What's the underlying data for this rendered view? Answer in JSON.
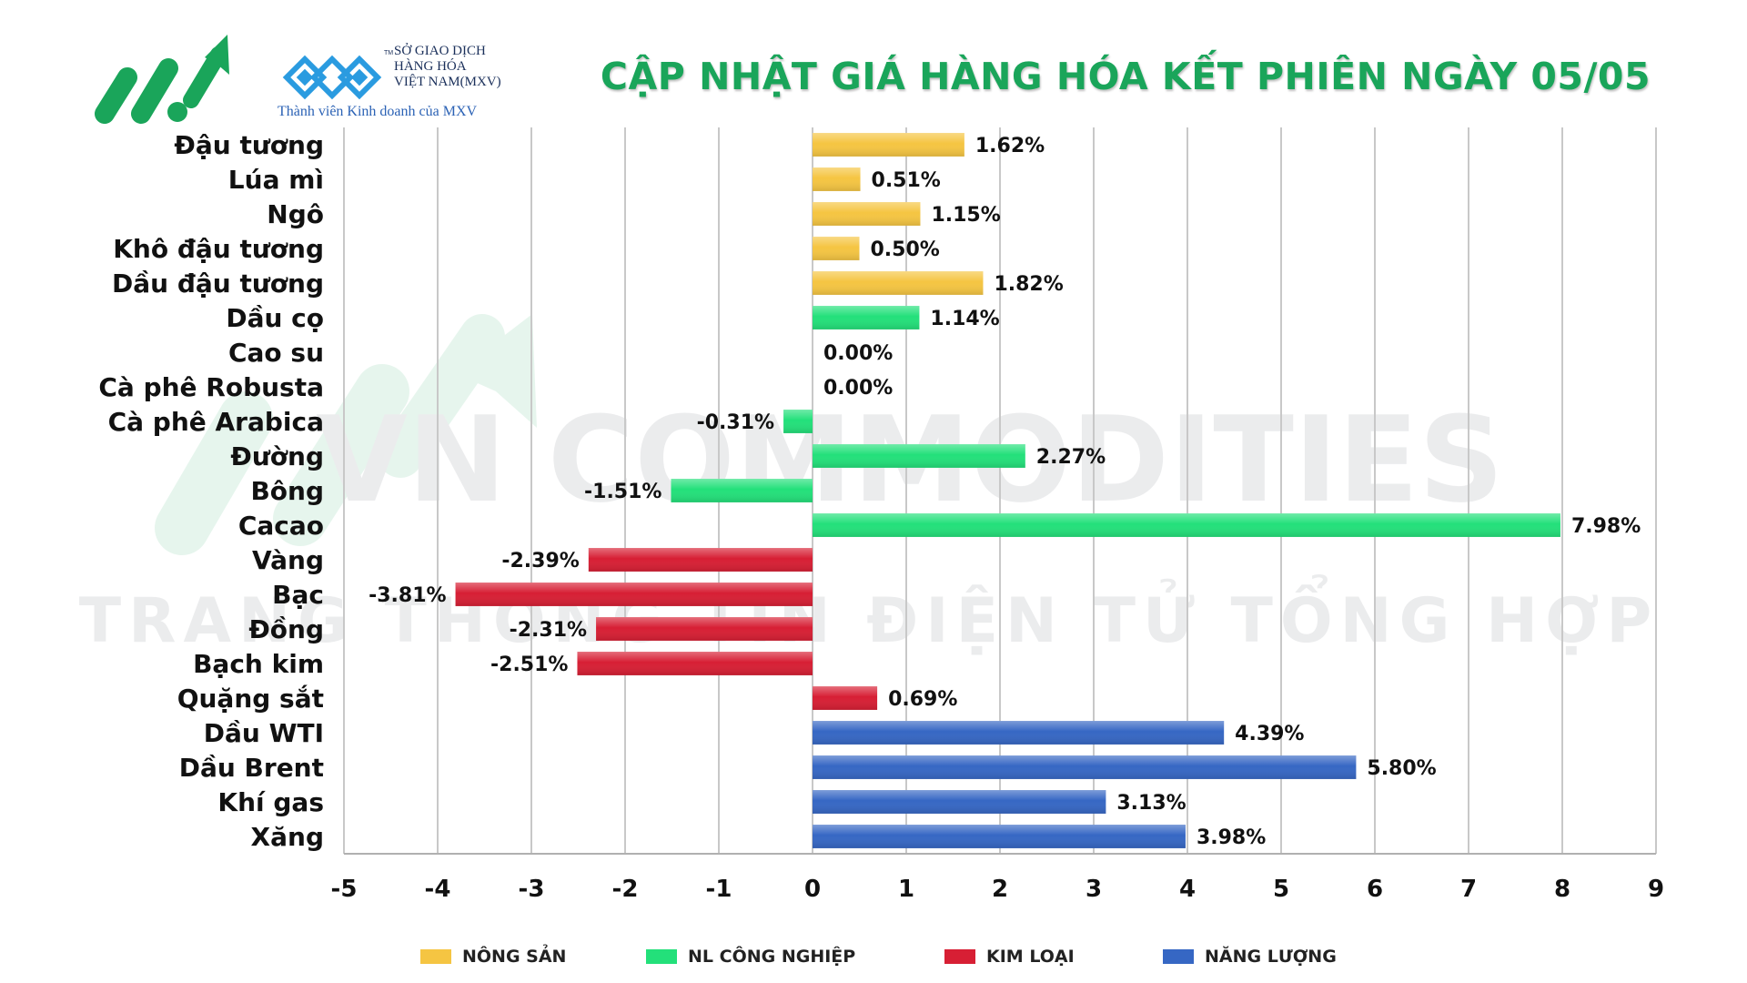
{
  "header": {
    "title": "CẬP NHẬT GIÁ HÀNG HÓA KẾT PHIÊN NGÀY 05/05",
    "exchange_lines": [
      "SỞ GIAO DỊCH",
      "HÀNG HÓA",
      "VIỆT NAM(MXV)"
    ],
    "member_text": "Thành viên Kinh doanh của MXV",
    "trademark": "TM"
  },
  "watermark": {
    "line1": "VN COMMODITIES",
    "line2": "TRANG THÔNG TIN ĐIỆN TỬ TỔNG HỢP"
  },
  "colors": {
    "nong_san": "#f5c542",
    "nl_cong_nghiep": "#23e07a",
    "kim_loai": "#d71f34",
    "nang_luong": "#3667c4",
    "title": "#1aa55a",
    "logo_green": "#1aa55a",
    "logo_blue": "#2a9be0"
  },
  "chart_data": {
    "type": "bar",
    "orientation": "horizontal",
    "xlim": [
      -5,
      9
    ],
    "xticks": [
      "-5",
      "-4",
      "-3",
      "-2",
      "-1",
      "0",
      "1",
      "2",
      "3",
      "4",
      "5",
      "6",
      "7",
      "8",
      "9"
    ],
    "grid": "vertical",
    "legend_position": "bottom",
    "categories": [
      "Đậu tương",
      "Lúa mì",
      "Ngô",
      "Khô đậu tương",
      "Dầu đậu tương",
      "Dầu cọ",
      "Cao su",
      "Cà phê Robusta",
      "Cà phê Arabica",
      "Đường",
      "Bông",
      "Cacao",
      "Vàng",
      "Bạc",
      "Đồng",
      "Bạch kim",
      "Quặng sắt",
      "Dầu WTI",
      "Dầu Brent",
      "Khí gas",
      "Xăng"
    ],
    "values": [
      1.62,
      0.51,
      1.15,
      0.5,
      1.82,
      1.14,
      0.0,
      0.0,
      -0.31,
      2.27,
      -1.51,
      7.98,
      -2.39,
      -3.81,
      -2.31,
      -2.51,
      0.69,
      4.39,
      5.8,
      3.13,
      3.98
    ],
    "labels": [
      "1.62%",
      "0.51%",
      "1.15%",
      "0.50%",
      "1.82%",
      "1.14%",
      "0.00%",
      "0.00%",
      "-0.31%",
      "2.27%",
      "-1.51%",
      "7.98%",
      "-2.39%",
      "-3.81%",
      "-2.31%",
      "-2.51%",
      "0.69%",
      "4.39%",
      "5.80%",
      "3.13%",
      "3.98%"
    ],
    "groups": [
      "nong_san",
      "nong_san",
      "nong_san",
      "nong_san",
      "nong_san",
      "nl_cong_nghiep",
      "nl_cong_nghiep",
      "nl_cong_nghiep",
      "nl_cong_nghiep",
      "nl_cong_nghiep",
      "nl_cong_nghiep",
      "nl_cong_nghiep",
      "kim_loai",
      "kim_loai",
      "kim_loai",
      "kim_loai",
      "kim_loai",
      "nang_luong",
      "nang_luong",
      "nang_luong",
      "nang_luong"
    ],
    "legend": [
      {
        "key": "nong_san",
        "label": "NÔNG SẢN"
      },
      {
        "key": "nl_cong_nghiep",
        "label": "NL CÔNG NGHIỆP"
      },
      {
        "key": "kim_loai",
        "label": "KIM LOẠI"
      },
      {
        "key": "nang_luong",
        "label": "NĂNG LƯỢNG"
      }
    ]
  }
}
